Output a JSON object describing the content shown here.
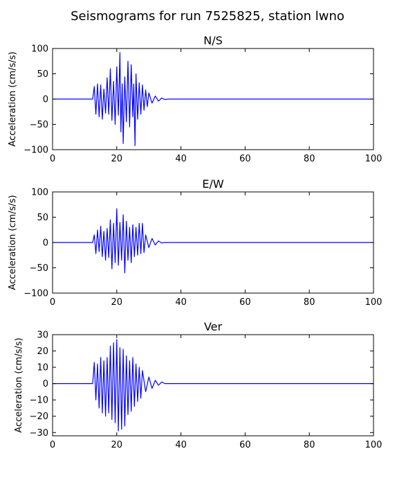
{
  "figure": {
    "title": "Seismograms for run 7525825, station lwno"
  },
  "chart_data": [
    {
      "type": "line",
      "title": "N/S",
      "xlabel": "",
      "ylabel": "Acceleration (cm/s/s)",
      "xlim": [
        0,
        100
      ],
      "ylim": [
        -100,
        100
      ],
      "xticks": [
        0,
        20,
        40,
        60,
        80,
        100
      ],
      "yticks": [
        -100,
        -50,
        0,
        50,
        100
      ],
      "grid": false,
      "series_color": "#0000ff",
      "series": [
        {
          "x": [
            0,
            12.5,
            13,
            13.5,
            14,
            14.5,
            15,
            15.5,
            16,
            16.5,
            17,
            17.5,
            18,
            18.5,
            19,
            19.5,
            20,
            20.5,
            21,
            21.3,
            21.7,
            22,
            22.5,
            23,
            23.5,
            24,
            24.5,
            25,
            25.3,
            25.7,
            26,
            26.5,
            27,
            27.5,
            28,
            28.5,
            29,
            29.5,
            30,
            31,
            32,
            33,
            34,
            35,
            36,
            100
          ],
          "y": [
            0,
            0,
            25,
            -30,
            30,
            -35,
            28,
            -40,
            20,
            -28,
            42,
            -30,
            60,
            -42,
            35,
            -50,
            64,
            -32,
            92,
            -65,
            30,
            -88,
            44,
            -45,
            75,
            -55,
            68,
            -35,
            30,
            -92,
            50,
            -40,
            32,
            -30,
            28,
            -22,
            18,
            -15,
            12,
            -8,
            6,
            -4,
            2,
            -1,
            0,
            0
          ]
        }
      ]
    },
    {
      "type": "line",
      "title": "E/W",
      "xlabel": "",
      "ylabel": "Acceleration (cm/s/s)",
      "xlim": [
        0,
        100
      ],
      "ylim": [
        -100,
        100
      ],
      "xticks": [
        0,
        20,
        40,
        60,
        80,
        100
      ],
      "yticks": [
        -100,
        -50,
        0,
        50,
        100
      ],
      "grid": false,
      "series_color": "#0000ff",
      "series": [
        {
          "x": [
            0,
            12.5,
            13,
            13.5,
            14,
            14.5,
            15,
            15.5,
            16,
            16.5,
            17,
            17.5,
            18,
            18.5,
            19,
            19.5,
            20,
            20.5,
            21,
            21.5,
            22,
            22.5,
            23,
            23.5,
            24,
            24.5,
            25,
            25.5,
            26,
            26.5,
            27,
            27.5,
            28,
            28.5,
            29,
            30,
            31,
            32,
            33,
            34,
            35,
            100
          ],
          "y": [
            0,
            0,
            15,
            -22,
            25,
            -18,
            32,
            -28,
            22,
            -35,
            28,
            -30,
            45,
            -52,
            38,
            -40,
            67,
            -45,
            40,
            -35,
            55,
            -60,
            42,
            -35,
            30,
            -40,
            35,
            -28,
            30,
            -25,
            38,
            -22,
            38,
            -20,
            15,
            -10,
            8,
            -5,
            3,
            -1,
            0,
            0
          ]
        }
      ]
    },
    {
      "type": "line",
      "title": "Ver",
      "xlabel": "",
      "ylabel": "Acceleration (cm/s/s)",
      "xlim": [
        0,
        100
      ],
      "ylim": [
        -32,
        30
      ],
      "xticks": [
        0,
        20,
        40,
        60,
        80,
        100
      ],
      "yticks": [
        -30,
        -20,
        -10,
        0,
        10,
        20,
        30
      ],
      "grid": false,
      "series_color": "#0000ff",
      "series": [
        {
          "x": [
            0,
            12.5,
            13,
            13.5,
            14,
            14.5,
            15,
            15.5,
            16,
            16.5,
            17,
            17.5,
            18,
            18.5,
            19,
            19.5,
            20,
            20.5,
            21,
            21.5,
            22,
            22.5,
            23,
            23.5,
            24,
            24.5,
            25,
            25.5,
            26,
            26.5,
            27,
            27.5,
            28,
            29,
            30,
            31,
            32,
            33,
            34,
            35,
            37,
            100
          ],
          "y": [
            0,
            0,
            13,
            -10,
            12,
            -15,
            16,
            -18,
            14,
            -20,
            16,
            -18,
            23,
            -22,
            25,
            -24,
            27,
            -29,
            22,
            -28,
            21,
            -26,
            17,
            -19,
            14,
            -17,
            16,
            -14,
            12,
            -11,
            10,
            -9,
            8,
            -5,
            4,
            -3,
            2,
            -1,
            1,
            0,
            0,
            0
          ]
        }
      ]
    }
  ]
}
